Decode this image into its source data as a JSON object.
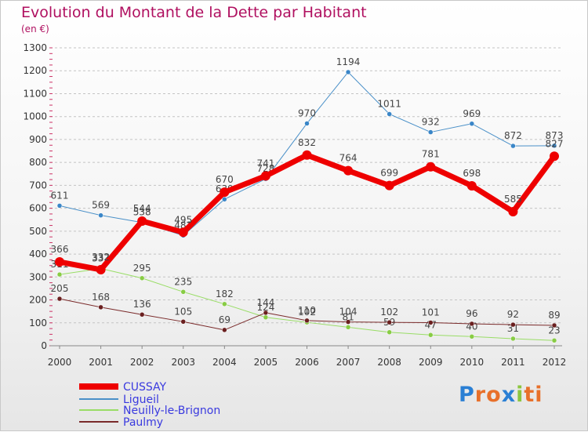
{
  "header": {
    "title": "Evolution du Montant de la Dette par Habitant",
    "subtitle": "(en €)"
  },
  "logo": {
    "text": "Proxiti",
    "colors": [
      "#2a7fd4",
      "#e8702a",
      "#e8702a",
      "#2a7fd4",
      "#8cc63f",
      "#e8702a",
      "#e8702a"
    ]
  },
  "chart_data": {
    "type": "line",
    "title": "Evolution du Montant de la Dette par Habitant",
    "subtitle": "(en €)",
    "xlabel": "",
    "ylabel": "",
    "x": [
      2000,
      2001,
      2002,
      2003,
      2004,
      2005,
      2006,
      2007,
      2008,
      2009,
      2010,
      2011,
      2012
    ],
    "ylim": [
      0,
      1300
    ],
    "yticks": [
      0,
      100,
      200,
      300,
      400,
      500,
      600,
      700,
      800,
      900,
      1000,
      1100,
      1200,
      1300
    ],
    "grid": "horizontal dashed",
    "legend": "bottom-left",
    "series": [
      {
        "name": "Ligueil",
        "color": "#4a90c8",
        "width": 1,
        "marker": "#3a86c8",
        "values": [
          611,
          569,
          538,
          481,
          639,
          728,
          970,
          1194,
          1011,
          932,
          969,
          872,
          873
        ]
      },
      {
        "name": "Neuilly-le-Brignon",
        "color": "#99dd66",
        "width": 1,
        "marker": "#88cc44",
        "values": [
          311,
          337,
          295,
          235,
          182,
          124,
          102,
          81,
          59,
          47,
          40,
          31,
          23
        ]
      },
      {
        "name": "Paulmy",
        "color": "#7a2a2a",
        "width": 1,
        "marker": "#6a1f1f",
        "values": [
          205,
          168,
          136,
          105,
          69,
          144,
          110,
          104,
          102,
          101,
          96,
          92,
          89
        ]
      },
      {
        "name": "CUSSAY",
        "color": "#ee0000",
        "width": 7,
        "marker": "#ee0000",
        "values": [
          366,
          332,
          544,
          495,
          670,
          741,
          832,
          764,
          699,
          781,
          698,
          585,
          827
        ]
      }
    ],
    "legend_order": [
      "CUSSAY",
      "Ligueil",
      "Neuilly-le-Brignon",
      "Paulmy"
    ]
  }
}
